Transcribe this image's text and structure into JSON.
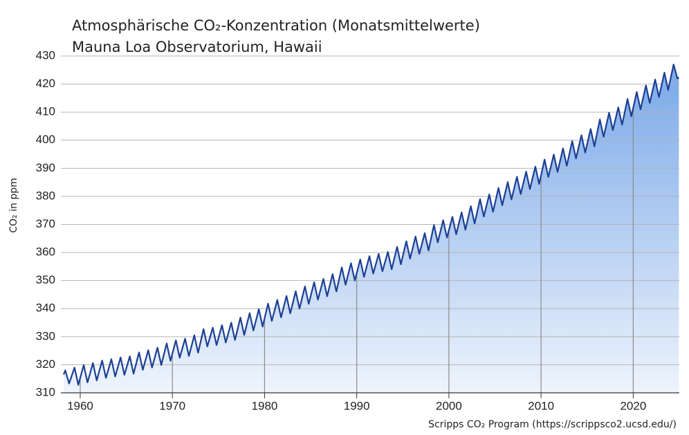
{
  "chart_data": {
    "type": "line",
    "title": "Atmosphärische CO₂-Konzentration (Monatsmittelwerte)",
    "subtitle": "Mauna Loa Observatorium, Hawaii",
    "y_label": "CO₂ in ppm",
    "source": "Scripps CO₂ Program  (https://scrippsco2.ucsd.edu/)",
    "xlim": [
      1957.9,
      2025.0
    ],
    "xticks": [
      1960,
      1970,
      1980,
      1990,
      2000,
      2010,
      2020
    ],
    "ylim": [
      310,
      430
    ],
    "yticks": [
      310,
      320,
      330,
      340,
      350,
      360,
      370,
      380,
      390,
      400,
      410,
      420,
      430
    ],
    "grid": true,
    "series": [
      {
        "color": "#1b3f94",
        "x": [
          1958.2,
          1958.38,
          1958.79,
          1959.38,
          1959.79,
          1960.38,
          1960.79,
          1961.38,
          1961.79,
          1962.38,
          1962.79,
          1963.38,
          1963.79,
          1964.38,
          1964.79,
          1965.38,
          1965.79,
          1966.38,
          1966.79,
          1967.38,
          1967.79,
          1968.38,
          1968.79,
          1969.38,
          1969.79,
          1970.38,
          1970.79,
          1971.38,
          1971.79,
          1972.38,
          1972.79,
          1973.38,
          1973.79,
          1974.38,
          1974.79,
          1975.38,
          1975.79,
          1976.38,
          1976.79,
          1977.38,
          1977.79,
          1978.38,
          1978.79,
          1979.38,
          1979.79,
          1980.38,
          1980.79,
          1981.38,
          1981.79,
          1982.38,
          1982.79,
          1983.38,
          1983.79,
          1984.38,
          1984.79,
          1985.38,
          1985.79,
          1986.38,
          1986.79,
          1987.38,
          1987.79,
          1988.38,
          1988.79,
          1989.38,
          1989.79,
          1990.38,
          1990.79,
          1991.38,
          1991.79,
          1992.38,
          1992.79,
          1993.38,
          1993.79,
          1994.38,
          1994.79,
          1995.38,
          1995.79,
          1996.38,
          1996.79,
          1997.38,
          1997.79,
          1998.38,
          1998.79,
          1999.38,
          1999.79,
          2000.38,
          2000.79,
          2001.38,
          2001.79,
          2002.38,
          2002.79,
          2003.38,
          2003.79,
          2004.38,
          2004.79,
          2005.38,
          2005.79,
          2006.38,
          2006.79,
          2007.38,
          2007.79,
          2008.38,
          2008.79,
          2009.38,
          2009.79,
          2010.38,
          2010.79,
          2011.38,
          2011.79,
          2012.38,
          2012.79,
          2013.38,
          2013.79,
          2014.38,
          2014.79,
          2015.38,
          2015.79,
          2016.38,
          2016.79,
          2017.38,
          2017.79,
          2018.38,
          2018.79,
          2019.38,
          2019.79,
          2020.38,
          2020.79,
          2021.38,
          2021.79,
          2022.38,
          2022.79,
          2023.38,
          2023.79,
          2024.38,
          2024.79,
          2024.95
        ],
        "values": [
          316.5,
          318.0,
          313.3,
          319.0,
          312.8,
          319.9,
          313.7,
          320.6,
          314.4,
          321.5,
          315.3,
          322.0,
          315.8,
          322.6,
          316.4,
          323.0,
          316.8,
          324.4,
          318.2,
          325.2,
          319.0,
          326.1,
          319.9,
          327.6,
          321.4,
          328.7,
          322.5,
          329.3,
          323.1,
          330.5,
          324.3,
          332.7,
          326.5,
          333.2,
          327.0,
          334.1,
          327.9,
          335.0,
          328.8,
          336.8,
          330.6,
          338.4,
          332.2,
          339.8,
          333.6,
          341.8,
          335.6,
          343.1,
          336.9,
          344.5,
          338.3,
          346.2,
          340.0,
          347.9,
          341.7,
          349.4,
          343.2,
          350.6,
          344.4,
          352.3,
          346.1,
          354.7,
          348.5,
          356.2,
          350.0,
          357.5,
          351.3,
          358.7,
          352.5,
          359.5,
          353.3,
          360.2,
          354.0,
          362.0,
          355.8,
          364.0,
          357.8,
          365.7,
          359.5,
          366.9,
          360.7,
          369.8,
          363.6,
          371.5,
          365.3,
          372.7,
          366.5,
          374.3,
          368.1,
          376.5,
          370.3,
          379.0,
          372.8,
          380.7,
          374.5,
          383.0,
          376.8,
          385.1,
          378.9,
          387.0,
          380.8,
          388.8,
          382.6,
          390.6,
          384.4,
          393.1,
          386.9,
          394.9,
          388.7,
          397.1,
          390.9,
          399.7,
          393.5,
          401.8,
          395.6,
          404.0,
          397.8,
          407.4,
          401.2,
          409.8,
          403.6,
          411.7,
          405.5,
          414.7,
          408.5,
          417.2,
          411.0,
          419.5,
          413.3,
          421.6,
          415.4,
          424.1,
          417.9,
          427.0,
          422.0,
          422.4
        ]
      }
    ]
  }
}
